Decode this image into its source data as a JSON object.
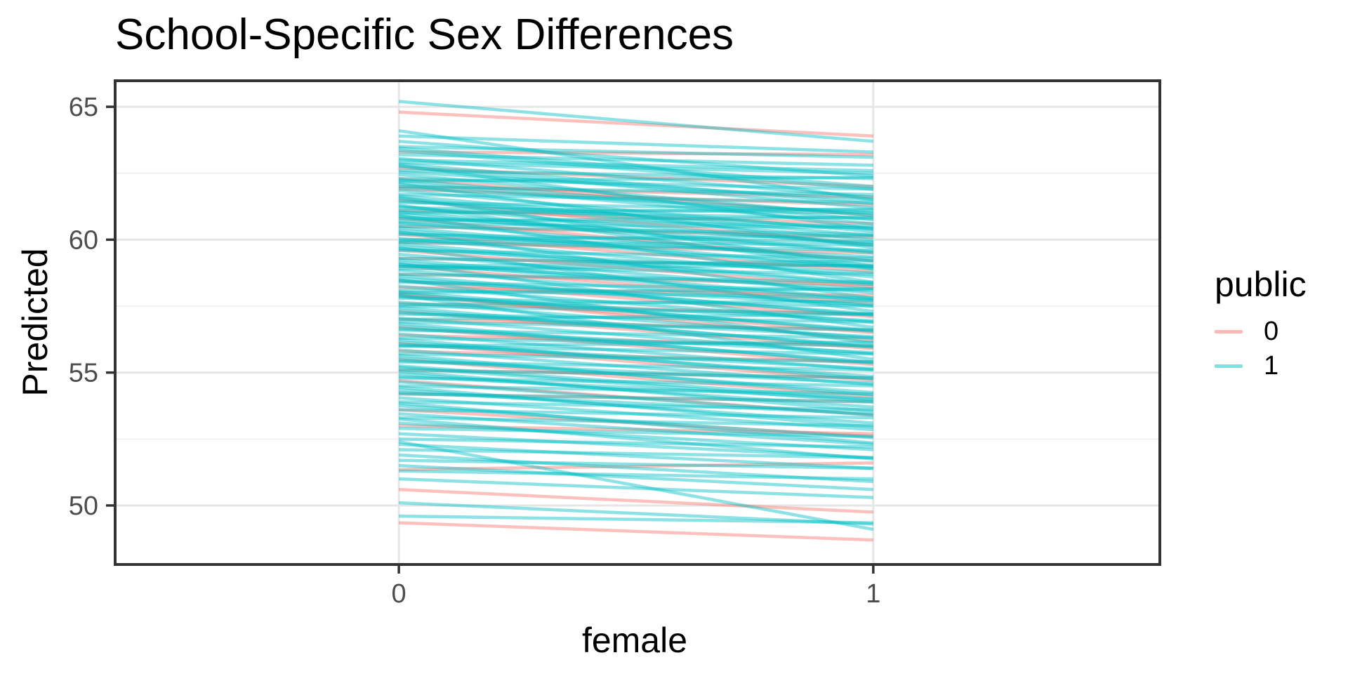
{
  "chart_data": {
    "type": "line",
    "title": "School-Specific Sex Differences",
    "xlabel": "female",
    "ylabel": "Predicted",
    "x": [
      0,
      1
    ],
    "xlim": [
      -0.598,
      1.604
    ],
    "ylim": [
      47.78,
      65.98
    ],
    "x_ticks": [
      0,
      1
    ],
    "y_ticks": [
      50,
      55,
      60,
      65
    ],
    "y_minor_ticks": [
      52.5,
      57.5,
      62.5
    ],
    "grid": true,
    "alpha": 0.45,
    "line_width": 4.5,
    "panel_border_color": "#333333",
    "tick_color": "#333333",
    "tick_label_color": "#4D4D4D",
    "grid_major_color": "#E6E6E6",
    "grid_minor_color": "#F2F2F2",
    "legend": {
      "title": "public",
      "position": "right",
      "entries": [
        {
          "label": "0",
          "color": "#F8766D"
        },
        {
          "label": "1",
          "color": "#00BFC4"
        }
      ]
    },
    "series": [
      {
        "name": "0",
        "color": "#F8766D",
        "lines": [
          [
            64.8,
            63.9
          ],
          [
            63.3,
            63.2
          ],
          [
            62.7,
            62.0
          ],
          [
            62.3,
            60.9
          ],
          [
            61.9,
            61.3
          ],
          [
            61.5,
            59.8
          ],
          [
            61.1,
            60.6
          ],
          [
            60.8,
            59.2
          ],
          [
            60.5,
            60.1
          ],
          [
            60.2,
            58.8
          ],
          [
            59.9,
            59.5
          ],
          [
            59.6,
            58.2
          ],
          [
            59.3,
            59.0
          ],
          [
            59.0,
            57.6
          ],
          [
            58.7,
            58.3
          ],
          [
            58.45,
            57.1
          ],
          [
            58.2,
            57.9
          ],
          [
            57.9,
            56.5
          ],
          [
            57.6,
            57.2
          ],
          [
            57.3,
            55.9
          ],
          [
            57.0,
            56.6
          ],
          [
            56.7,
            55.3
          ],
          [
            56.4,
            56.0
          ],
          [
            56.1,
            54.7
          ],
          [
            55.8,
            55.4
          ],
          [
            55.5,
            54.1
          ],
          [
            55.1,
            54.8
          ],
          [
            54.7,
            53.4
          ],
          [
            54.2,
            53.9
          ],
          [
            53.6,
            52.6
          ],
          [
            53.0,
            52.7
          ],
          [
            51.35,
            51.6
          ],
          [
            50.6,
            49.75
          ],
          [
            49.35,
            48.7
          ],
          [
            62.0,
            61.6
          ],
          [
            58.0,
            56.2
          ]
        ]
      },
      {
        "name": "1",
        "color": "#00BFC4",
        "lines": [
          [
            65.2,
            63.7
          ],
          [
            64.1,
            61.5
          ],
          [
            63.9,
            63.3
          ],
          [
            63.7,
            62.4
          ],
          [
            63.5,
            63.1
          ],
          [
            63.35,
            61.9
          ],
          [
            63.2,
            62.8
          ],
          [
            63.05,
            61.6
          ],
          [
            62.9,
            62.5
          ],
          [
            62.75,
            61.2
          ],
          [
            62.6,
            62.3
          ],
          [
            62.45,
            60.9
          ],
          [
            62.3,
            61.9
          ],
          [
            62.15,
            60.6
          ],
          [
            62.0,
            61.7
          ],
          [
            61.85,
            60.3
          ],
          [
            61.7,
            61.4
          ],
          [
            61.55,
            60.0
          ],
          [
            61.4,
            61.1
          ],
          [
            61.25,
            59.8
          ],
          [
            61.1,
            60.8
          ],
          [
            60.95,
            59.5
          ],
          [
            60.8,
            60.5
          ],
          [
            60.65,
            59.2
          ],
          [
            60.5,
            60.2
          ],
          [
            60.35,
            58.9
          ],
          [
            60.2,
            59.9
          ],
          [
            60.05,
            58.6
          ],
          [
            59.9,
            59.6
          ],
          [
            59.75,
            58.3
          ],
          [
            59.6,
            59.3
          ],
          [
            59.45,
            58.0
          ],
          [
            59.3,
            59.0
          ],
          [
            59.15,
            57.7
          ],
          [
            59.0,
            58.7
          ],
          [
            58.85,
            57.5
          ],
          [
            58.7,
            58.4
          ],
          [
            58.55,
            57.2
          ],
          [
            58.4,
            58.1
          ],
          [
            58.25,
            56.9
          ],
          [
            58.1,
            57.8
          ],
          [
            57.95,
            56.6
          ],
          [
            57.8,
            57.5
          ],
          [
            57.65,
            56.3
          ],
          [
            57.5,
            57.2
          ],
          [
            57.35,
            56.0
          ],
          [
            57.2,
            56.9
          ],
          [
            57.05,
            55.7
          ],
          [
            56.9,
            56.6
          ],
          [
            56.75,
            55.4
          ],
          [
            56.6,
            56.3
          ],
          [
            56.45,
            55.1
          ],
          [
            56.3,
            56.0
          ],
          [
            56.15,
            54.85
          ],
          [
            56.0,
            55.7
          ],
          [
            55.85,
            54.55
          ],
          [
            55.7,
            55.4
          ],
          [
            55.55,
            54.25
          ],
          [
            55.4,
            55.1
          ],
          [
            55.25,
            54.0
          ],
          [
            55.1,
            54.8
          ],
          [
            54.95,
            53.7
          ],
          [
            54.8,
            54.5
          ],
          [
            54.65,
            53.4
          ],
          [
            54.5,
            54.2
          ],
          [
            54.35,
            53.1
          ],
          [
            54.2,
            53.9
          ],
          [
            54.05,
            52.85
          ],
          [
            53.9,
            53.6
          ],
          [
            53.75,
            52.55
          ],
          [
            53.6,
            53.3
          ],
          [
            53.45,
            52.3
          ],
          [
            53.3,
            53.0
          ],
          [
            53.1,
            52.1
          ],
          [
            52.9,
            52.6
          ],
          [
            52.7,
            51.8
          ],
          [
            52.5,
            52.2
          ],
          [
            52.4,
            49.1
          ],
          [
            52.3,
            51.4
          ],
          [
            52.1,
            51.8
          ],
          [
            51.9,
            50.9
          ],
          [
            51.7,
            51.4
          ],
          [
            51.5,
            50.6
          ],
          [
            51.3,
            51.0
          ],
          [
            51.0,
            50.3
          ],
          [
            50.1,
            49.3
          ],
          [
            49.6,
            49.35
          ],
          [
            62.2,
            62.35
          ],
          [
            61.0,
            61.15
          ],
          [
            60.0,
            60.15
          ],
          [
            59.0,
            59.2
          ],
          [
            58.0,
            58.15
          ],
          [
            57.0,
            57.2
          ],
          [
            56.0,
            56.15
          ],
          [
            61.6,
            59.0
          ],
          [
            60.9,
            58.4
          ],
          [
            60.3,
            57.8
          ],
          [
            59.7,
            57.3
          ],
          [
            59.1,
            56.7
          ],
          [
            58.5,
            56.1
          ],
          [
            57.9,
            55.5
          ],
          [
            62.8,
            60.4
          ],
          [
            62.1,
            59.7
          ],
          [
            61.3,
            58.9
          ],
          [
            63.0,
            62.6
          ],
          [
            62.55,
            61.5
          ],
          [
            61.95,
            61.0
          ],
          [
            61.45,
            60.4
          ],
          [
            60.85,
            59.9
          ],
          [
            60.25,
            59.35
          ],
          [
            59.65,
            58.75
          ],
          [
            59.05,
            58.15
          ],
          [
            58.45,
            57.55
          ],
          [
            57.85,
            56.95
          ],
          [
            57.25,
            56.35
          ],
          [
            56.65,
            55.75
          ],
          [
            56.05,
            55.15
          ],
          [
            55.45,
            54.6
          ],
          [
            54.85,
            54.0
          ],
          [
            54.25,
            53.45
          ],
          [
            63.45,
            62.0
          ],
          [
            62.85,
            61.35
          ],
          [
            62.25,
            60.75
          ],
          [
            61.65,
            60.15
          ],
          [
            61.05,
            59.55
          ],
          [
            60.45,
            58.95
          ],
          [
            59.85,
            58.35
          ],
          [
            59.25,
            57.75
          ],
          [
            58.65,
            57.15
          ],
          [
            58.05,
            56.55
          ],
          [
            57.45,
            55.95
          ],
          [
            56.85,
            55.35
          ],
          [
            56.25,
            54.75
          ],
          [
            55.65,
            54.15
          ],
          [
            55.05,
            53.55
          ],
          [
            54.45,
            52.95
          ],
          [
            53.85,
            52.35
          ],
          [
            53.25,
            51.75
          ],
          [
            60.7,
            60.85
          ],
          [
            58.9,
            59.05
          ],
          [
            57.55,
            57.7
          ],
          [
            61.2,
            61.0
          ],
          [
            60.6,
            60.45
          ],
          [
            59.95,
            59.8
          ],
          [
            55.2,
            53.9
          ]
        ]
      }
    ]
  }
}
